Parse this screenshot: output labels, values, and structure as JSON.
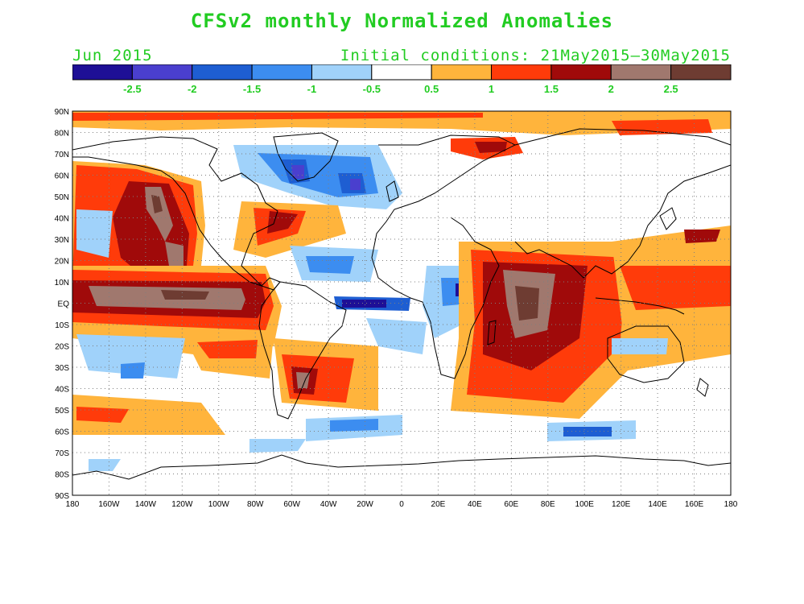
{
  "title": "CFSv2 monthly Normalized Anomalies",
  "subtitle_left": "Jun 2015",
  "subtitle_right": "Initial conditions: 21May2015–30May2015",
  "colors": {
    "text": "#22cc22",
    "coast": "#000000",
    "grid": "#7f7f7f"
  },
  "colorbar": {
    "colors": [
      "#1e0f96",
      "#4a3fce",
      "#1e5ed2",
      "#3c8df0",
      "#a0d2fa",
      "#ffffff",
      "#ffb43c",
      "#ff3b0a",
      "#a00a0a",
      "#a0786e",
      "#6e3c32"
    ],
    "labels": [
      "-2.5",
      "-2",
      "-1.5",
      "-1",
      "-0.5",
      "0.5",
      "1",
      "1.5",
      "2",
      "2.5"
    ]
  },
  "axes": {
    "y_labels": [
      "90N",
      "80N",
      "70N",
      "60N",
      "50N",
      "40N",
      "30N",
      "20N",
      "10N",
      "EQ",
      "10S",
      "20S",
      "30S",
      "40S",
      "50S",
      "60S",
      "70S",
      "80S",
      "90S"
    ],
    "x_labels": [
      "180",
      "160W",
      "140W",
      "120W",
      "100W",
      "80W",
      "60W",
      "40W",
      "20W",
      "0",
      "20E",
      "40E",
      "60E",
      "80E",
      "100E",
      "120E",
      "140E",
      "160E",
      "180"
    ]
  },
  "anomaly_regions": [
    {
      "name": "equatorial-pacific-warm",
      "level": "2.5",
      "lon": -120,
      "lat": 10
    },
    {
      "name": "northeast-pacific-warm",
      "level": "2.5",
      "lon": -142,
      "lat": 42
    },
    {
      "name": "north-atlantic-cold",
      "level": "-2",
      "lon": -40,
      "lat": 58
    },
    {
      "name": "equatorial-atlantic-cold",
      "level": "-2.5",
      "lon": -25,
      "lat": 0
    },
    {
      "name": "indian-ocean-warm",
      "level": "2.5",
      "lon": 70,
      "lat": 2
    },
    {
      "name": "southern-ocean-cold",
      "level": "-1",
      "lon": -60,
      "lat": -60
    }
  ]
}
